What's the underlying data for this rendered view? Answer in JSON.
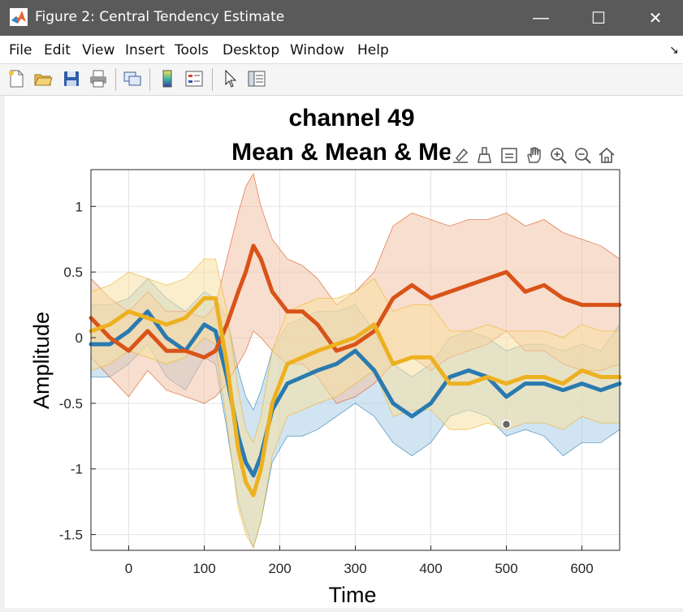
{
  "window": {
    "title": "Figure 2: Central Tendency Estimate",
    "minimize_glyph": "—",
    "maximize_glyph": "☐",
    "close_glyph": "✕",
    "app_icon": "matlab-icon"
  },
  "menu": {
    "items": [
      "File",
      "Edit",
      "View",
      "Insert",
      "Tools",
      "Desktop",
      "Window",
      "Help"
    ],
    "dock_glyph": "↘"
  },
  "toolbar": {
    "icons": [
      "new-figure-icon",
      "open-file-icon",
      "save-icon",
      "print-icon",
      "link-plot-icon",
      "colorbar-icon",
      "legend-icon",
      "pointer-icon",
      "property-inspector-icon"
    ]
  },
  "axes_toolbar": {
    "icons": [
      "brush-edit-icon",
      "data-brush-icon",
      "data-tips-icon",
      "pan-icon",
      "zoom-in-icon",
      "zoom-out-icon",
      "home-icon"
    ]
  },
  "colors": {
    "blue": "#2a7ab0",
    "orange": "#d95319",
    "yellow": "#edb120",
    "blue_fill": "#a9cde8",
    "orange_fill": "#f2c2a6",
    "yellow_fill": "#f8e0a2"
  },
  "chart_data": {
    "type": "line",
    "title": [
      "channel 49",
      "Mean & Mean & Me"
    ],
    "xlabel": "Time",
    "ylabel": "Amplitude",
    "xlim": [
      -50,
      650
    ],
    "ylim": [
      -1.62,
      1.28
    ],
    "xticks": [
      0,
      100,
      200,
      300,
      400,
      500,
      600
    ],
    "xtick_labels": [
      "0",
      "100",
      "200",
      "300",
      "400",
      "500",
      "600"
    ],
    "yticks": [
      1,
      0.5,
      0,
      -0.5,
      -1,
      -1.5
    ],
    "ytick_labels": [
      "1",
      "0.5",
      "0",
      "-0.5",
      "-1",
      "-1.5"
    ],
    "grid": true,
    "x": [
      -50,
      -25,
      0,
      25,
      50,
      75,
      100,
      115,
      130,
      145,
      155,
      165,
      175,
      190,
      210,
      230,
      250,
      275,
      300,
      325,
      350,
      375,
      400,
      425,
      450,
      475,
      500,
      525,
      550,
      575,
      600,
      625,
      650
    ],
    "series": [
      {
        "color": "blue",
        "values": [
          -0.05,
          -0.05,
          0.05,
          0.2,
          0.0,
          -0.1,
          0.1,
          0.05,
          -0.3,
          -0.75,
          -0.95,
          -1.05,
          -0.9,
          -0.55,
          -0.35,
          -0.3,
          -0.25,
          -0.2,
          -0.1,
          -0.25,
          -0.5,
          -0.6,
          -0.5,
          -0.3,
          -0.25,
          -0.3,
          -0.45,
          -0.35,
          -0.35,
          -0.4,
          -0.35,
          -0.4,
          -0.35
        ],
        "upper": [
          0.25,
          0.25,
          0.3,
          0.45,
          0.3,
          0.2,
          0.35,
          0.3,
          0.15,
          -0.25,
          -0.45,
          -0.55,
          -0.4,
          -0.1,
          0.1,
          0.15,
          0.2,
          0.2,
          0.25,
          0.05,
          -0.2,
          -0.3,
          -0.2,
          0.0,
          0.05,
          0.0,
          -0.1,
          -0.05,
          -0.05,
          -0.1,
          -0.05,
          -0.1,
          0.1
        ],
        "lower": [
          -0.3,
          -0.3,
          -0.2,
          -0.05,
          -0.3,
          -0.4,
          -0.15,
          -0.2,
          -0.7,
          -1.25,
          -1.45,
          -1.6,
          -1.4,
          -0.95,
          -0.75,
          -0.75,
          -0.7,
          -0.6,
          -0.5,
          -0.6,
          -0.8,
          -0.9,
          -0.8,
          -0.6,
          -0.55,
          -0.6,
          -0.75,
          -0.7,
          -0.75,
          -0.9,
          -0.8,
          -0.8,
          -0.7
        ]
      },
      {
        "color": "orange",
        "values": [
          0.15,
          0.0,
          -0.1,
          0.05,
          -0.1,
          -0.1,
          -0.15,
          -0.1,
          0.1,
          0.35,
          0.5,
          0.7,
          0.6,
          0.35,
          0.2,
          0.2,
          0.1,
          -0.1,
          -0.05,
          0.05,
          0.3,
          0.4,
          0.3,
          0.35,
          0.4,
          0.45,
          0.5,
          0.35,
          0.4,
          0.3,
          0.25,
          0.25,
          0.25
        ],
        "upper": [
          0.45,
          0.3,
          0.2,
          0.35,
          0.2,
          0.2,
          0.15,
          0.25,
          0.6,
          0.95,
          1.15,
          1.25,
          1.0,
          0.75,
          0.6,
          0.55,
          0.45,
          0.25,
          0.35,
          0.5,
          0.85,
          0.95,
          0.9,
          0.85,
          0.9,
          0.9,
          0.95,
          0.85,
          0.9,
          0.8,
          0.75,
          0.7,
          0.6
        ],
        "lower": [
          -0.15,
          -0.3,
          -0.45,
          -0.25,
          -0.4,
          -0.45,
          -0.5,
          -0.45,
          -0.35,
          -0.2,
          -0.1,
          0.05,
          0.0,
          -0.1,
          -0.2,
          -0.2,
          -0.3,
          -0.5,
          -0.45,
          -0.35,
          -0.2,
          -0.15,
          -0.25,
          -0.15,
          -0.1,
          -0.05,
          0.05,
          -0.1,
          -0.1,
          -0.2,
          -0.25,
          -0.25,
          -0.2
        ]
      },
      {
        "color": "yellow",
        "values": [
          0.05,
          0.1,
          0.2,
          0.15,
          0.1,
          0.15,
          0.3,
          0.3,
          -0.2,
          -0.85,
          -1.1,
          -1.2,
          -1.0,
          -0.5,
          -0.2,
          -0.15,
          -0.1,
          -0.05,
          0.0,
          0.1,
          -0.2,
          -0.15,
          -0.15,
          -0.35,
          -0.35,
          -0.3,
          -0.35,
          -0.3,
          -0.3,
          -0.35,
          -0.25,
          -0.3,
          -0.3
        ],
        "upper": [
          0.35,
          0.4,
          0.5,
          0.45,
          0.4,
          0.45,
          0.6,
          0.6,
          0.2,
          -0.4,
          -0.7,
          -0.8,
          -0.6,
          -0.1,
          0.2,
          0.25,
          0.3,
          0.3,
          0.35,
          0.45,
          0.2,
          0.25,
          0.25,
          0.05,
          0.05,
          0.1,
          0.05,
          0.05,
          0.05,
          0.0,
          0.1,
          0.05,
          0.05
        ],
        "lower": [
          -0.25,
          -0.2,
          -0.1,
          -0.15,
          -0.2,
          -0.15,
          0.0,
          -0.05,
          -0.65,
          -1.3,
          -1.5,
          -1.6,
          -1.4,
          -0.9,
          -0.6,
          -0.55,
          -0.5,
          -0.45,
          -0.35,
          -0.25,
          -0.6,
          -0.55,
          -0.55,
          -0.7,
          -0.7,
          -0.65,
          -0.7,
          -0.65,
          -0.65,
          -0.7,
          -0.6,
          -0.65,
          -0.65
        ]
      }
    ],
    "marker_point": {
      "x": 500,
      "y": -0.66
    }
  }
}
